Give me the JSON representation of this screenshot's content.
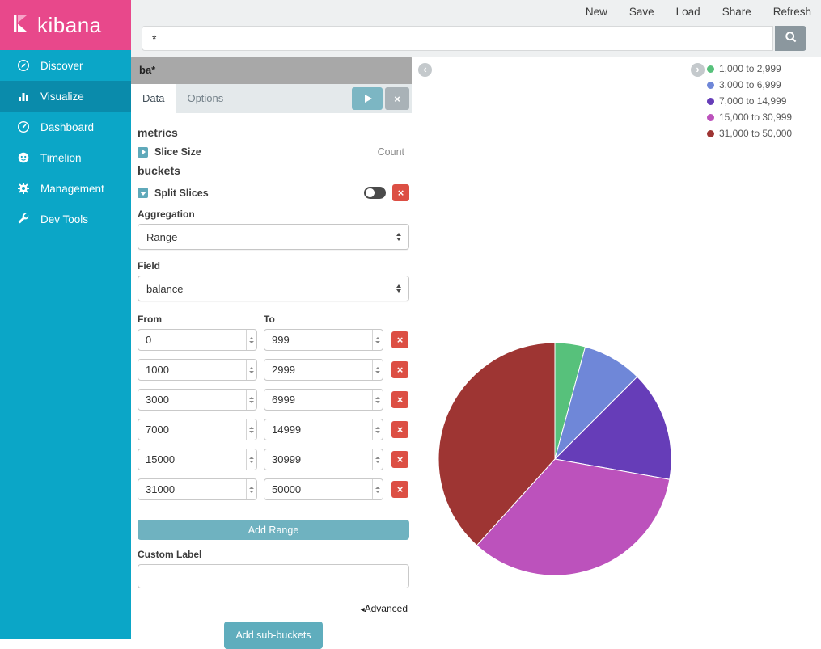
{
  "brand": {
    "name": "kibana"
  },
  "topbar": {
    "menu": [
      {
        "label": "New"
      },
      {
        "label": "Save"
      },
      {
        "label": "Load"
      },
      {
        "label": "Share"
      },
      {
        "label": "Refresh"
      }
    ],
    "query": {
      "value": "*"
    }
  },
  "sidebar": {
    "items": [
      {
        "label": "Discover",
        "active": false
      },
      {
        "label": "Visualize",
        "active": true
      },
      {
        "label": "Dashboard",
        "active": false
      },
      {
        "label": "Timelion",
        "active": false
      },
      {
        "label": "Management",
        "active": false
      },
      {
        "label": "Dev Tools",
        "active": false
      }
    ]
  },
  "config_panel": {
    "title": "ba*",
    "tabs": [
      {
        "label": "Data"
      },
      {
        "label": "Options"
      }
    ],
    "metrics_heading": "metrics",
    "slice_size": {
      "label": "Slice Size",
      "value": "Count"
    },
    "buckets_heading": "buckets",
    "split_slices": {
      "label": "Split Slices"
    },
    "aggregation": {
      "label": "Aggregation",
      "value": "Range"
    },
    "field": {
      "label": "Field",
      "value": "balance"
    },
    "from_label": "From",
    "to_label": "To",
    "ranges": [
      {
        "from": "0",
        "to": "999"
      },
      {
        "from": "1000",
        "to": "2999"
      },
      {
        "from": "3000",
        "to": "6999"
      },
      {
        "from": "7000",
        "to": "14999"
      },
      {
        "from": "15000",
        "to": "30999"
      },
      {
        "from": "31000",
        "to": "50000"
      }
    ],
    "add_range_label": "Add Range",
    "custom_label_heading": "Custom Label",
    "custom_label_value": "",
    "advanced_label": "Advanced",
    "add_subbuckets_label": "Add sub-buckets"
  },
  "chart_data": {
    "type": "pie",
    "title": "",
    "categories": [
      "1,000 to 2,999",
      "3,000 to 6,999",
      "7,000 to 14,999",
      "15,000 to 30,999",
      "31,000 to 50,000"
    ],
    "values_percent": [
      4.2,
      8.3,
      15.3,
      33.9,
      38.3
    ],
    "colors": [
      "#57c17b",
      "#6f87d8",
      "#663db8",
      "#bc52bc",
      "#9e3533"
    ],
    "legend_position": "top-right",
    "start_angle_deg": -90,
    "direction": "clockwise"
  },
  "icons": {
    "advanced_arrow": "◂",
    "collapse_left_chevron": "‹",
    "collapse_right_chevron": "›",
    "close_x": "×",
    "play": "▶"
  },
  "colors": {
    "brand_pink": "#e8488b",
    "sidebar_teal": "#0ba6c7",
    "sidebar_active_teal": "#0a8bab",
    "accent_teal": "#5fadbd",
    "danger_red": "#dc4f44",
    "topbar_gray": "#eef0f1",
    "title_bar_gray": "#a8a8a8"
  }
}
